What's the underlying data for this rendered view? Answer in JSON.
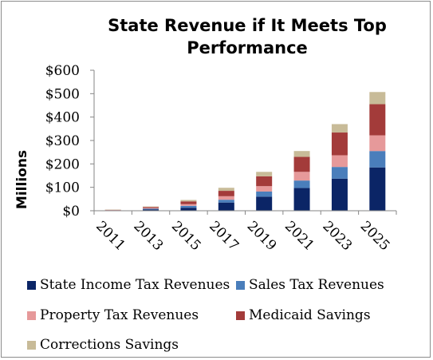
{
  "chart_data": {
    "type": "bar",
    "stacked": true,
    "title": "State Revenue if It Meets Top Performance",
    "ylabel": "Millions",
    "xlabel": "",
    "ylim": [
      0,
      600
    ],
    "yticks": [
      0,
      100,
      200,
      300,
      400,
      500,
      600
    ],
    "ytick_labels": [
      "$0",
      "$100",
      "$200",
      "$300",
      "$400",
      "$500",
      "$600"
    ],
    "categories": [
      "2011",
      "2013",
      "2015",
      "2017",
      "2019",
      "2021",
      "2023",
      "2025"
    ],
    "grid": false,
    "legend_position": "bottom",
    "series": [
      {
        "name": "State Income Tax Revenues",
        "color": "#0b2566",
        "values": [
          1,
          6,
          13,
          35,
          60,
          97,
          137,
          185
        ]
      },
      {
        "name": "Sales Tax Revenues",
        "color": "#4a7ebb",
        "values": [
          1,
          3,
          8,
          12,
          22,
          32,
          50,
          70
        ]
      },
      {
        "name": "Property Tax Revenues",
        "color": "#e6999a",
        "values": [
          1,
          3,
          7,
          15,
          23,
          37,
          50,
          67
        ]
      },
      {
        "name": "Medicaid Savings",
        "color": "#a33b3a",
        "values": [
          1,
          4,
          12,
          23,
          42,
          64,
          97,
          133
        ]
      },
      {
        "name": "Corrections Savings",
        "color": "#c8bb98",
        "values": [
          1,
          2,
          6,
          13,
          19,
          25,
          36,
          52
        ]
      }
    ]
  }
}
